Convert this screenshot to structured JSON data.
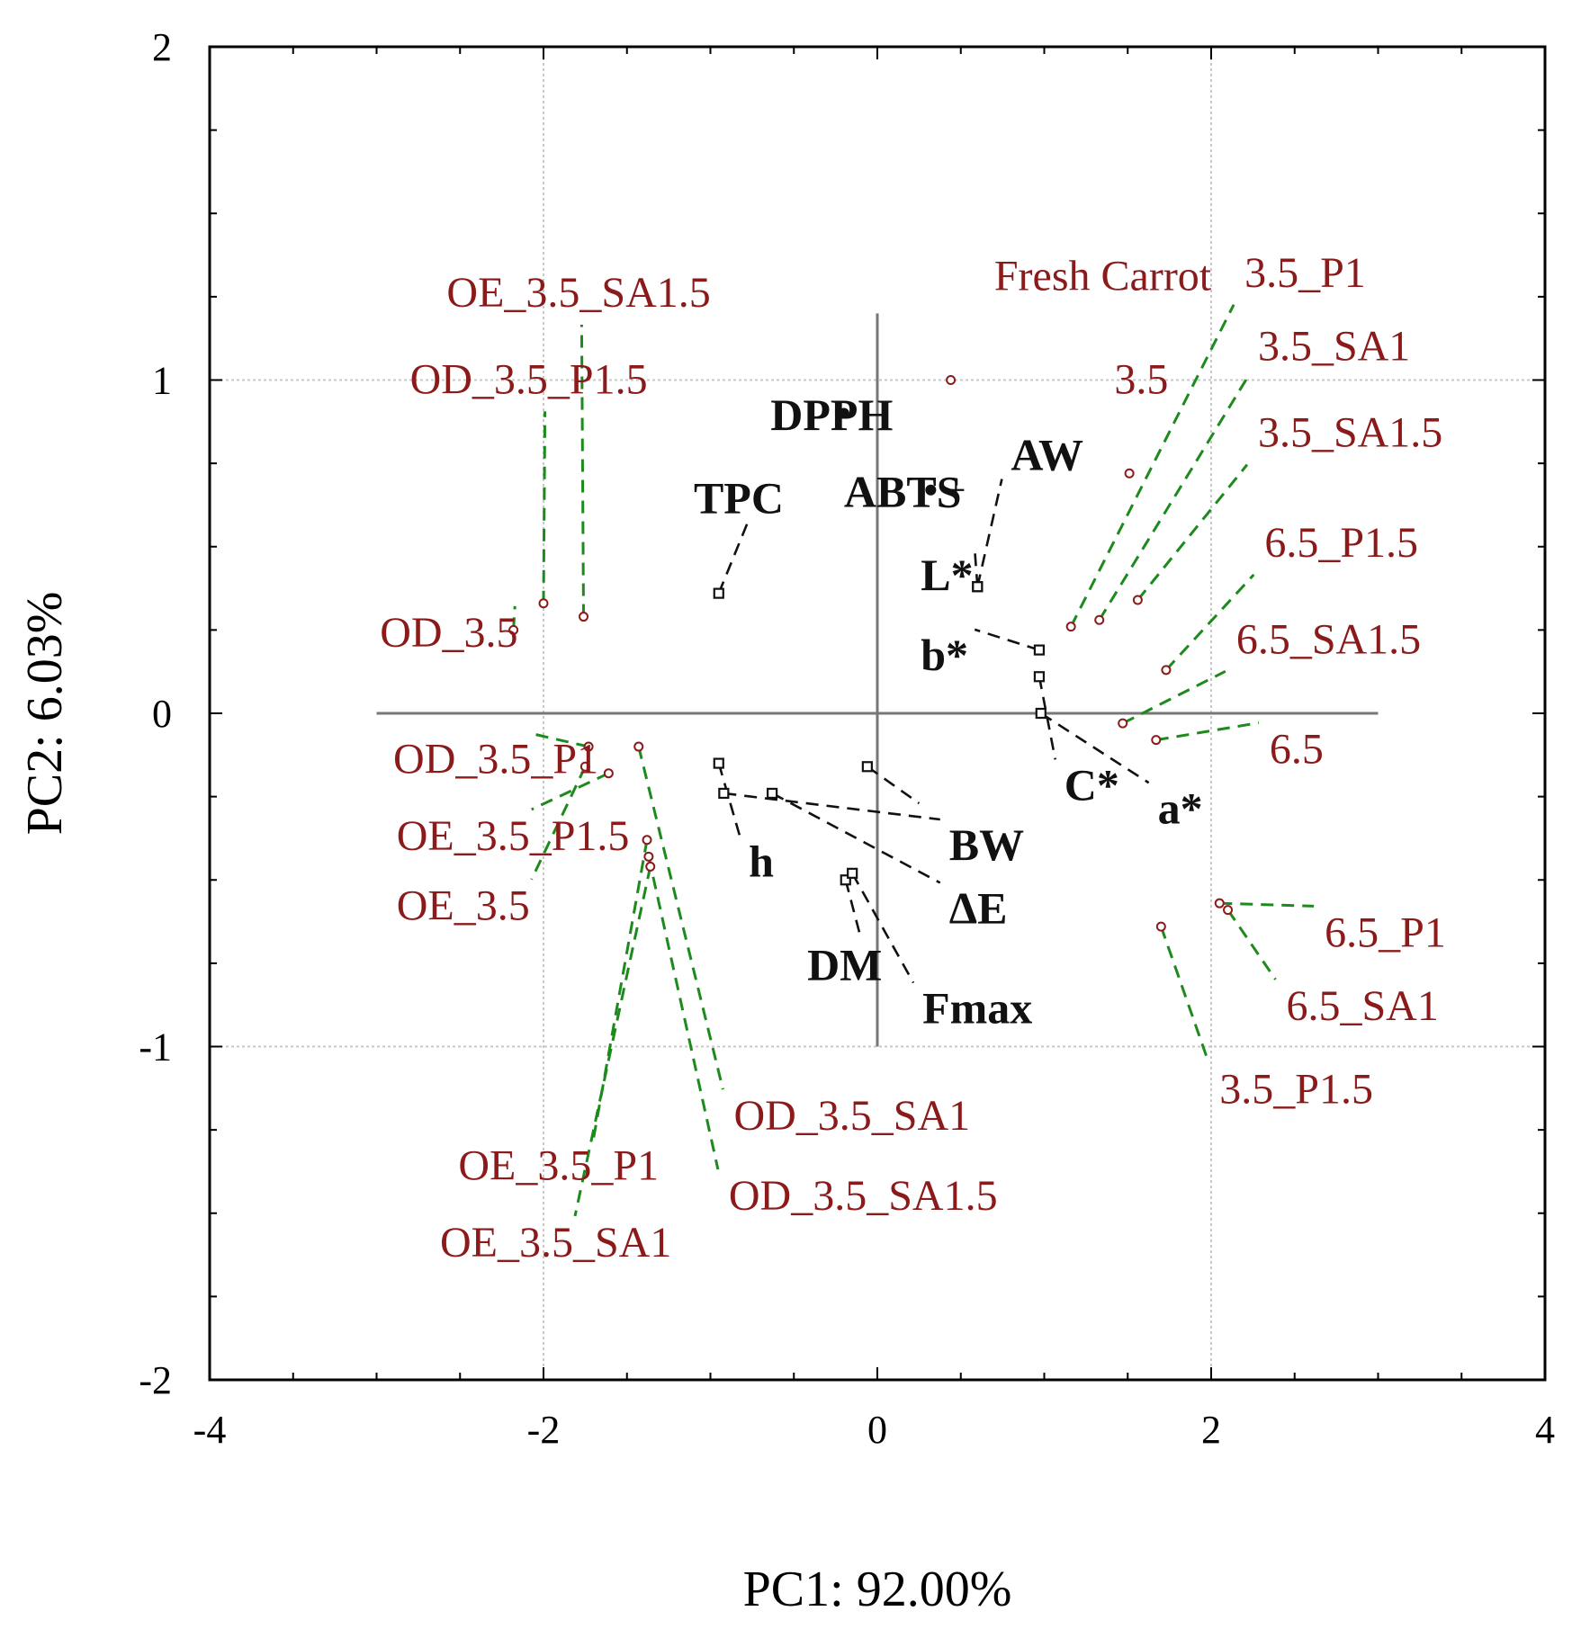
{
  "chart_data": {
    "type": "scatter",
    "title": "",
    "xlabel": "PC1: 92.00%",
    "ylabel": "PC2:  6.03%",
    "xlim": [
      -4,
      4
    ],
    "ylim": [
      -2,
      2
    ],
    "x_ticks": [
      -4,
      -2,
      0,
      2,
      4
    ],
    "y_ticks": [
      2,
      1,
      0,
      -1,
      -2
    ],
    "x_tick_labels": [
      "-4",
      "-2",
      "0",
      "2",
      "4"
    ],
    "y_tick_labels": [
      "2",
      "1",
      "0",
      "-1",
      "-2"
    ],
    "grid": true,
    "colors": {
      "samples": "#8b1a1a",
      "sample_leader": "#1c8a1c",
      "variables": "#111111",
      "grid": "#c8c8c8"
    },
    "samples": [
      {
        "name": "Fresh Carrot",
        "x": 0.44,
        "y": 1.0,
        "label_x": 0.7,
        "label_y": 1.27,
        "leader": false
      },
      {
        "name": "3.5",
        "x": 1.51,
        "y": 0.72,
        "label_x": 1.42,
        "label_y": 0.96,
        "leader": false
      },
      {
        "name": "3.5_P1",
        "x": 1.16,
        "y": 0.26,
        "label_x": 2.2,
        "label_y": 1.28,
        "leader": true
      },
      {
        "name": "3.5_SA1",
        "x": 1.33,
        "y": 0.28,
        "label_x": 2.28,
        "label_y": 1.06,
        "leader": true
      },
      {
        "name": "3.5_SA1.5",
        "x": 1.56,
        "y": 0.34,
        "label_x": 2.28,
        "label_y": 0.8,
        "leader": true
      },
      {
        "name": "6.5_P1.5",
        "x": 1.73,
        "y": 0.13,
        "label_x": 2.32,
        "label_y": 0.47,
        "leader": true
      },
      {
        "name": "6.5_SA1.5",
        "x": 1.47,
        "y": -0.03,
        "label_x": 2.15,
        "label_y": 0.18,
        "leader": true
      },
      {
        "name": "6.5",
        "x": 1.67,
        "y": -0.08,
        "label_x": 2.35,
        "label_y": -0.15,
        "leader": true
      },
      {
        "name": "6.5_P1",
        "x": 2.05,
        "y": -0.57,
        "label_x": 2.68,
        "label_y": -0.7,
        "leader": true
      },
      {
        "name": "6.5_SA1",
        "x": 2.1,
        "y": -0.59,
        "label_x": 2.45,
        "label_y": -0.92,
        "leader": true
      },
      {
        "name": "3.5_P1.5",
        "x": 1.7,
        "y": -0.64,
        "label_x": 2.05,
        "label_y": -1.17,
        "leader": true
      },
      {
        "name": "OE_3.5_SA1.5",
        "x": -1.76,
        "y": 0.29,
        "label_x": -2.58,
        "label_y": 1.22,
        "leader": true
      },
      {
        "name": "OD_3.5_P1.5",
        "x": -2.0,
        "y": 0.33,
        "label_x": -2.8,
        "label_y": 0.96,
        "leader": true
      },
      {
        "name": "OD_3.5",
        "x": -2.18,
        "y": 0.25,
        "label_x": -2.98,
        "label_y": 0.2,
        "leader": true
      },
      {
        "name": "OD_3.5_P1",
        "x": -1.73,
        "y": -0.1,
        "label_x": -2.9,
        "label_y": -0.18,
        "leader": true
      },
      {
        "name": "OE_3.5_P1.5",
        "x": -1.61,
        "y": -0.18,
        "label_x": -2.88,
        "label_y": -0.41,
        "leader": true
      },
      {
        "name": "OE_3.5",
        "x": -1.75,
        "y": -0.16,
        "label_x": -2.88,
        "label_y": -0.62,
        "leader": true
      },
      {
        "name": "OD_3.5_SA1",
        "x": -1.43,
        "y": -0.1,
        "label_x": -0.86,
        "label_y": -1.25,
        "leader": true
      },
      {
        "name": "OD_3.5_SA1.5",
        "x": -1.37,
        "y": -0.43,
        "label_x": -0.89,
        "label_y": -1.49,
        "leader": true
      },
      {
        "name": "OE_3.5_P1",
        "x": -1.38,
        "y": -0.38,
        "label_x": -2.51,
        "label_y": -1.4,
        "leader": true
      },
      {
        "name": "OE_3.5_SA1",
        "x": -1.36,
        "y": -0.46,
        "label_x": -2.62,
        "label_y": -1.63,
        "leader": true
      }
    ],
    "variables": [
      {
        "name": "DPPH",
        "x": -0.2,
        "y": 0.9,
        "label_x": -0.64,
        "label_y": 0.85,
        "marker": "dot"
      },
      {
        "name": "ABTS",
        "x": 0.32,
        "y": 0.67,
        "label_x": -0.2,
        "label_y": 0.62,
        "marker": "dot"
      },
      {
        "name": "TPC",
        "x": -0.95,
        "y": 0.36,
        "label_x": -1.1,
        "label_y": 0.6,
        "marker": "square"
      },
      {
        "name": "AW",
        "x": 0.6,
        "y": 0.38,
        "label_x": 0.8,
        "label_y": 0.73,
        "marker": "square"
      },
      {
        "name": "L*",
        "x": 0.6,
        "y": 0.38,
        "label_x": 0.26,
        "label_y": 0.37,
        "marker": "square"
      },
      {
        "name": "b*",
        "x": 0.97,
        "y": 0.19,
        "label_x": 0.26,
        "label_y": 0.13,
        "marker": "square"
      },
      {
        "name": "C*",
        "x": 0.97,
        "y": 0.11,
        "label_x": 1.12,
        "label_y": -0.26,
        "marker": "square"
      },
      {
        "name": "a*",
        "x": 0.98,
        "y": 0.0,
        "label_x": 1.68,
        "label_y": -0.33,
        "marker": "square"
      },
      {
        "name": "h",
        "x": -0.95,
        "y": -0.15,
        "label_x": -0.77,
        "label_y": -0.49,
        "marker": "square"
      },
      {
        "name": "BW",
        "x": -0.92,
        "y": -0.24,
        "label_x": 0.43,
        "label_y": -0.44,
        "marker": "square"
      },
      {
        "name": "ΔE",
        "x": -0.63,
        "y": -0.24,
        "label_x": 0.43,
        "label_y": -0.63,
        "marker": "square"
      },
      {
        "name": "DM",
        "x": -0.19,
        "y": -0.5,
        "label_x": -0.42,
        "label_y": -0.8,
        "marker": "square"
      },
      {
        "name": "Fmax",
        "x": -0.15,
        "y": -0.48,
        "label_x": 0.27,
        "label_y": -0.93,
        "marker": "square"
      },
      {
        "name": "",
        "x": -0.06,
        "y": -0.16,
        "label_x": 0.25,
        "label_y": -0.27,
        "marker": "square"
      }
    ]
  }
}
